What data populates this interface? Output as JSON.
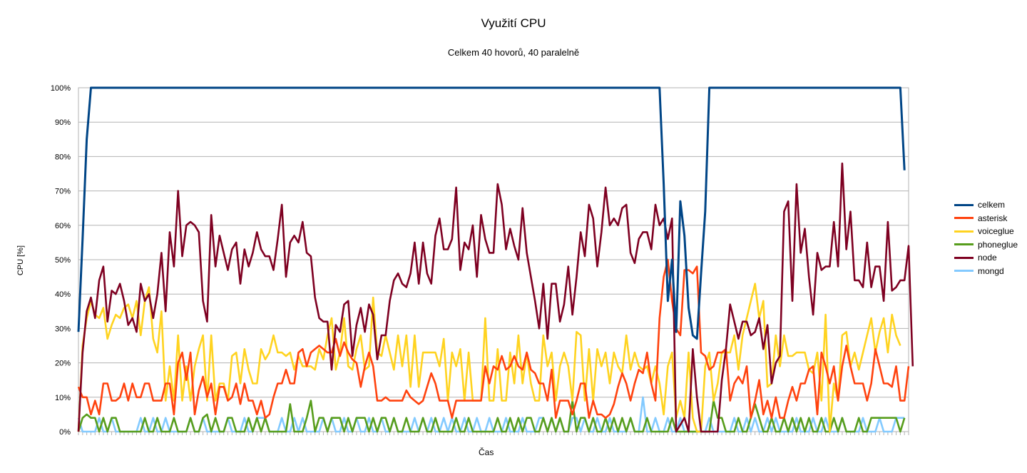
{
  "chart_data": {
    "type": "line",
    "title": "Využití CPU",
    "subtitle": "Celkem 40 hovorů, 40 paralelně",
    "xlabel": "Čas",
    "ylabel": "CPU [%]",
    "ylim": [
      0,
      100
    ],
    "yticks": [
      "0%",
      "10%",
      "20%",
      "30%",
      "40%",
      "50%",
      "60%",
      "70%",
      "80%",
      "90%",
      "100%"
    ],
    "grid": true,
    "legend_position": "right",
    "series": [
      {
        "name": "celkem",
        "color": "#004586",
        "points": [
          [
            0,
            29
          ],
          [
            1,
            56
          ],
          [
            2,
            85
          ],
          [
            3,
            100
          ],
          [
            140,
            100
          ],
          [
            141,
            72
          ],
          [
            142,
            38
          ],
          [
            143,
            50
          ],
          [
            144,
            29
          ],
          [
            145,
            67
          ],
          [
            146,
            57
          ],
          [
            147,
            36
          ],
          [
            148,
            28
          ],
          [
            149,
            27
          ],
          [
            150,
            46
          ],
          [
            151,
            64
          ],
          [
            152,
            100
          ],
          [
            198,
            100
          ],
          [
            199,
            76
          ]
        ]
      },
      {
        "name": "asterisk",
        "color": "#ff420e",
        "values": [
          13,
          10,
          10,
          5,
          9,
          5,
          14,
          14,
          9,
          9,
          10,
          14,
          9,
          14,
          10,
          10,
          14,
          14,
          9,
          9,
          9,
          14,
          14,
          5,
          20,
          23,
          15,
          23,
          5,
          12,
          16,
          10,
          14,
          5,
          13,
          13,
          9,
          10,
          14,
          8,
          14,
          9,
          9,
          5,
          9,
          4,
          5,
          10,
          14,
          14,
          18,
          14,
          14,
          23,
          24,
          19,
          23,
          24,
          25,
          24,
          23,
          23,
          27,
          22,
          26,
          23,
          21,
          20,
          13,
          19,
          23,
          19,
          9,
          9,
          10,
          9,
          9,
          9,
          9,
          12,
          10,
          9,
          8,
          9,
          13,
          17,
          14,
          9,
          9,
          9,
          4,
          9,
          9,
          9,
          9,
          9,
          9,
          9,
          19,
          14,
          19,
          18,
          22,
          18,
          19,
          22,
          19,
          18,
          23,
          18,
          17,
          14,
          14,
          9,
          18,
          4,
          9,
          9,
          9,
          5,
          9,
          14,
          14,
          4,
          9,
          5,
          5,
          4,
          5,
          8,
          13,
          17,
          14,
          9,
          14,
          18,
          17,
          23,
          14,
          9,
          33,
          45,
          50,
          38,
          30,
          28,
          47,
          47,
          46,
          48,
          23,
          22,
          18,
          19,
          23,
          23,
          24,
          9,
          14,
          16,
          14,
          19,
          4,
          9,
          15,
          5,
          9,
          4,
          10,
          4,
          4,
          9,
          13,
          9,
          14,
          14,
          18,
          19,
          5,
          23,
          19,
          14,
          19,
          9,
          19,
          25,
          19,
          14,
          14,
          14,
          9,
          14,
          24,
          19,
          14,
          14,
          13,
          19,
          9,
          9,
          19
        ]
      },
      {
        "name": "voiceglue",
        "color": "#ffd320",
        "values": [
          0,
          25,
          33,
          38,
          34,
          33,
          36,
          27,
          31,
          34,
          33,
          36,
          37,
          33,
          38,
          28,
          38,
          42,
          27,
          23,
          35,
          9,
          19,
          9,
          28,
          9,
          19,
          9,
          19,
          24,
          28,
          9,
          28,
          9,
          14,
          14,
          9,
          22,
          23,
          14,
          24,
          18,
          14,
          14,
          24,
          21,
          23,
          28,
          23,
          23,
          22,
          23,
          18,
          22,
          19,
          19,
          19,
          18,
          24,
          21,
          28,
          33,
          18,
          23,
          33,
          19,
          18,
          24,
          28,
          18,
          19,
          39,
          23,
          22,
          28,
          23,
          18,
          28,
          19,
          28,
          13,
          28,
          13,
          23,
          23,
          23,
          23,
          19,
          27,
          9,
          23,
          19,
          24,
          9,
          23,
          9,
          9,
          9,
          33,
          9,
          9,
          24,
          9,
          9,
          23,
          14,
          28,
          14,
          23,
          14,
          9,
          9,
          28,
          19,
          23,
          9,
          19,
          23,
          19,
          9,
          29,
          28,
          9,
          24,
          9,
          24,
          19,
          23,
          14,
          23,
          19,
          17,
          28,
          18,
          23,
          19,
          18,
          19,
          14,
          19,
          14,
          5,
          19,
          23,
          4,
          9,
          4,
          23,
          4,
          0,
          0,
          19,
          23,
          9,
          14,
          23,
          23,
          23,
          28,
          18,
          28,
          33,
          38,
          43,
          33,
          38,
          13,
          14,
          28,
          19,
          28,
          22,
          22,
          23,
          23,
          23,
          18,
          17,
          23,
          9,
          34,
          0,
          14,
          9,
          28,
          29,
          19,
          23,
          18,
          23,
          28,
          33,
          23,
          29,
          33,
          23,
          34,
          28,
          25
        ]
      },
      {
        "name": "phoneglue",
        "color": "#579d1c",
        "values": [
          0,
          4,
          5,
          4,
          4,
          0,
          4,
          0,
          4,
          4,
          0,
          0,
          0,
          0,
          0,
          0,
          4,
          0,
          0,
          4,
          0,
          0,
          0,
          4,
          0,
          0,
          0,
          4,
          0,
          0,
          4,
          5,
          0,
          4,
          0,
          0,
          4,
          4,
          0,
          0,
          0,
          4,
          0,
          4,
          0,
          4,
          0,
          0,
          0,
          0,
          0,
          8,
          0,
          0,
          0,
          4,
          9,
          0,
          4,
          4,
          0,
          4,
          4,
          4,
          0,
          4,
          0,
          4,
          4,
          4,
          0,
          4,
          0,
          4,
          4,
          0,
          4,
          0,
          0,
          4,
          0,
          0,
          0,
          4,
          0,
          0,
          4,
          0,
          0,
          0,
          0,
          4,
          0,
          0,
          4,
          0,
          0,
          0,
          0,
          0,
          0,
          4,
          0,
          0,
          4,
          0,
          4,
          0,
          4,
          4,
          0,
          0,
          4,
          0,
          4,
          0,
          4,
          0,
          0,
          9,
          0,
          4,
          4,
          0,
          4,
          0,
          0,
          4,
          0,
          4,
          0,
          4,
          0,
          4,
          0,
          0,
          0,
          4,
          0,
          0,
          0,
          0,
          0,
          4,
          0,
          0,
          0,
          0,
          0,
          0,
          0,
          0,
          0,
          9,
          4,
          4,
          0,
          0,
          0,
          4,
          0,
          0,
          4,
          8,
          4,
          0,
          0,
          4,
          0,
          0,
          4,
          0,
          4,
          0,
          4,
          0,
          4,
          0,
          0,
          4,
          0,
          0,
          4,
          0,
          4,
          0,
          0,
          0,
          4,
          0,
          0,
          4,
          4,
          4,
          4,
          4,
          4,
          4,
          0,
          4
        ]
      },
      {
        "name": "node",
        "color": "#7e0021",
        "values": [
          0,
          23,
          35,
          39,
          33,
          44,
          48,
          32,
          41,
          40,
          43,
          38,
          31,
          33,
          29,
          43,
          38,
          40,
          33,
          40,
          52,
          35,
          58,
          48,
          70,
          51,
          60,
          61,
          60,
          58,
          38,
          32,
          63,
          48,
          57,
          52,
          47,
          53,
          55,
          43,
          53,
          48,
          52,
          58,
          53,
          51,
          51,
          47,
          56,
          66,
          45,
          55,
          57,
          55,
          61,
          52,
          51,
          39,
          33,
          32,
          32,
          18,
          31,
          29,
          37,
          38,
          22,
          31,
          36,
          29,
          37,
          34,
          21,
          28,
          28,
          38,
          44,
          46,
          43,
          42,
          46,
          55,
          43,
          55,
          46,
          43,
          57,
          62,
          53,
          53,
          56,
          71,
          47,
          55,
          53,
          60,
          45,
          63,
          56,
          52,
          52,
          72,
          66,
          53,
          59,
          54,
          50,
          65,
          52,
          45,
          38,
          30,
          43,
          27,
          43,
          43,
          32,
          37,
          48,
          34,
          45,
          58,
          51,
          66,
          62,
          48,
          58,
          71,
          60,
          62,
          60,
          65,
          66,
          52,
          49,
          56,
          58,
          58,
          53,
          66,
          60,
          62,
          56,
          62,
          0,
          2,
          4,
          0,
          24,
          10,
          0,
          0,
          0,
          0,
          0,
          15,
          24,
          37,
          32,
          27,
          32,
          32,
          28,
          29,
          33,
          24,
          31,
          14,
          20,
          22,
          64,
          67,
          38,
          72,
          52,
          59,
          45,
          34,
          52,
          47,
          48,
          48,
          61,
          48,
          78,
          53,
          64,
          44,
          44,
          42,
          55,
          42,
          48,
          48,
          38,
          61,
          41,
          42,
          44,
          44,
          54,
          19
        ]
      },
      {
        "name": "mongd",
        "color": "#83caff",
        "values": [
          4,
          0,
          0,
          0,
          0,
          4,
          0,
          0,
          4,
          0,
          0,
          0,
          0,
          0,
          0,
          4,
          0,
          0,
          4,
          0,
          0,
          4,
          0,
          0,
          0,
          0,
          0,
          4,
          0,
          0,
          4,
          0,
          0,
          0,
          0,
          0,
          4,
          0,
          0,
          0,
          4,
          0,
          0,
          4,
          4,
          4,
          0,
          0,
          0,
          4,
          0,
          0,
          4,
          0,
          4,
          0,
          0,
          0,
          0,
          4,
          0,
          4,
          0,
          0,
          4,
          0,
          0,
          4,
          0,
          0,
          4,
          0,
          0,
          4,
          0,
          0,
          4,
          0,
          0,
          0,
          0,
          4,
          0,
          4,
          0,
          4,
          0,
          0,
          4,
          0,
          4,
          0,
          0,
          4,
          0,
          0,
          4,
          0,
          0,
          4,
          0,
          0,
          0,
          4,
          0,
          0,
          0,
          4,
          0,
          0,
          0,
          4,
          4,
          0,
          4,
          0,
          4,
          0,
          0,
          4,
          4,
          0,
          4,
          0,
          0,
          4,
          0,
          0,
          4,
          0,
          0,
          0,
          0,
          4,
          0,
          0,
          10,
          0,
          0,
          4,
          0,
          0,
          4,
          0,
          0,
          4,
          0,
          0,
          0,
          0,
          0,
          0,
          4,
          0,
          0,
          0,
          0,
          0,
          4,
          0,
          0,
          4,
          0,
          4,
          0,
          0,
          4,
          0,
          4,
          0,
          0,
          0,
          0,
          4,
          0,
          0,
          0,
          4,
          0,
          0,
          4,
          0,
          0,
          0,
          4,
          0,
          0,
          0,
          0,
          4,
          0,
          0,
          0,
          4,
          0,
          0,
          0,
          4,
          4,
          4
        ]
      }
    ]
  }
}
